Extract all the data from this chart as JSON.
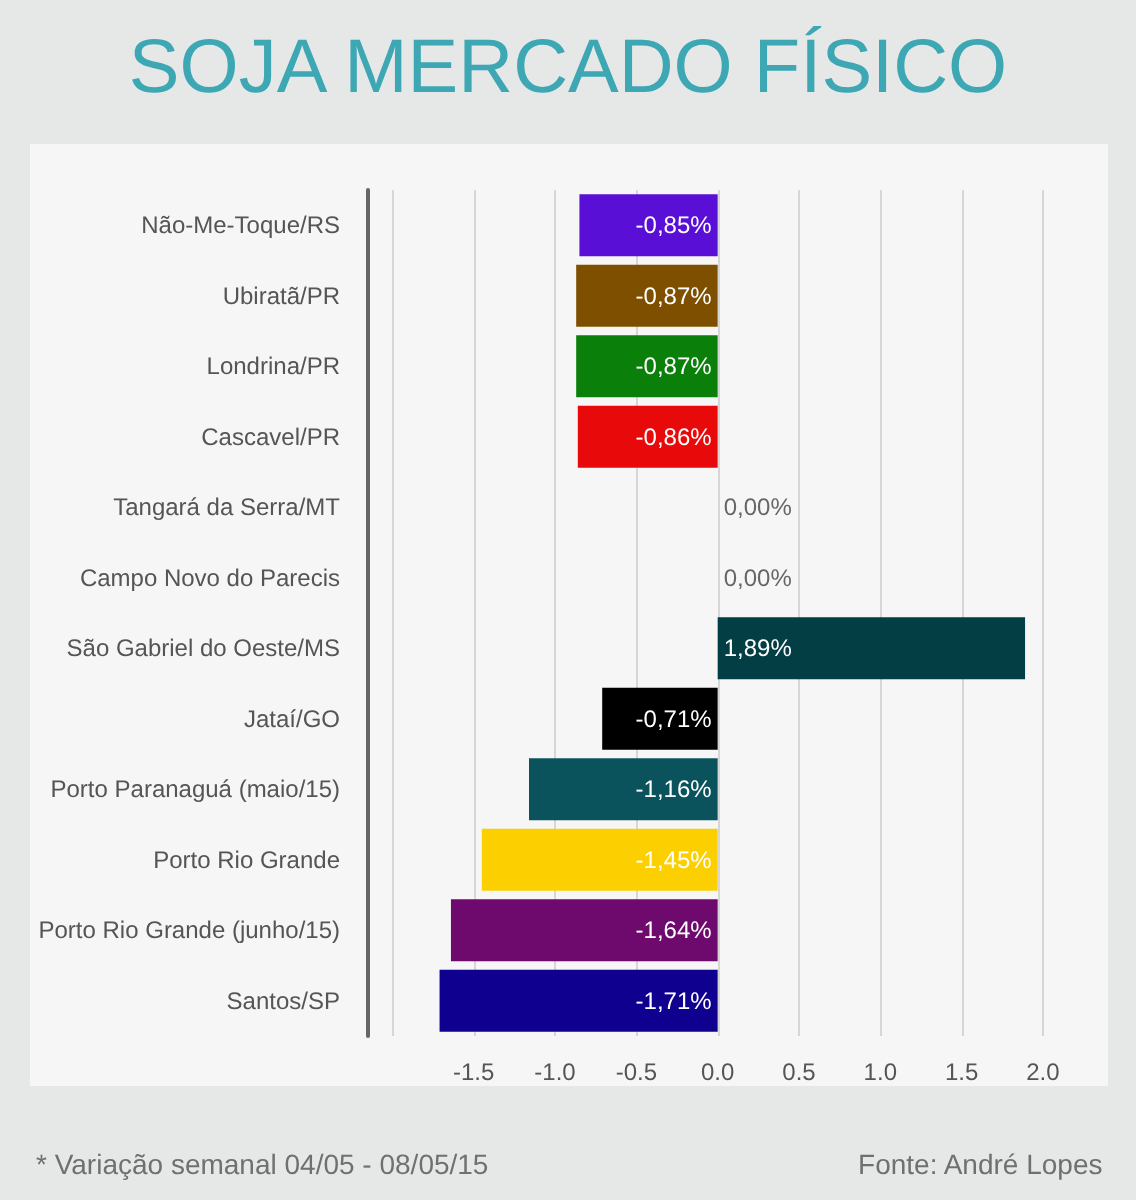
{
  "chart_data": {
    "type": "bar",
    "orientation": "horizontal",
    "title": "SOJA MERCADO FÍSICO",
    "categories": [
      "Não-Me-Toque/RS",
      "Ubiratã/PR",
      "Londrina/PR",
      "Cascavel/PR",
      "Tangará da Serra/MT",
      "Campo Novo do Parecis",
      "São Gabriel do Oeste/MS",
      "Jataí/GO",
      "Porto Paranaguá (maio/15)",
      "Porto Rio Grande",
      "Porto Rio Grande (junho/15)",
      "Santos/SP"
    ],
    "values": [
      -0.85,
      -0.87,
      -0.87,
      -0.86,
      0,
      0,
      1.89,
      -0.71,
      -1.16,
      -1.45,
      -1.64,
      -1.71
    ],
    "colors": [
      "#5a0fd6",
      "#7f4f00",
      "#0a7f0a",
      "#e80a0a",
      null,
      null,
      "#033e45",
      "#000000",
      "#0b535c",
      "#fcd000",
      "#6e0a6e",
      "#10008f"
    ],
    "value_labels": [
      "-0,85%",
      "-0,87%",
      "-0,87%",
      "-0,86%",
      "0,00%",
      "0,00%",
      "1,89%",
      "-0,71%",
      "-1,16%",
      "-1,45%",
      "-1,64%",
      "-1,71%"
    ],
    "xlim": [
      -2.15,
      2.4
    ],
    "xticks": [
      {
        "value": -2,
        "label": null
      },
      -1.5,
      {
        "value": -1,
        "label": "-1.0"
      },
      -0.5,
      {
        "value": 0,
        "label": "0.0"
      },
      0.5,
      {
        "value": 1,
        "label": "1.0"
      },
      1.5,
      {
        "value": 2,
        "label": "2.0"
      }
    ],
    "grid": "x",
    "annotations": [
      "* Variação semanal 04/05 - 08/05/15",
      "Fonte: André Lopes"
    ]
  }
}
